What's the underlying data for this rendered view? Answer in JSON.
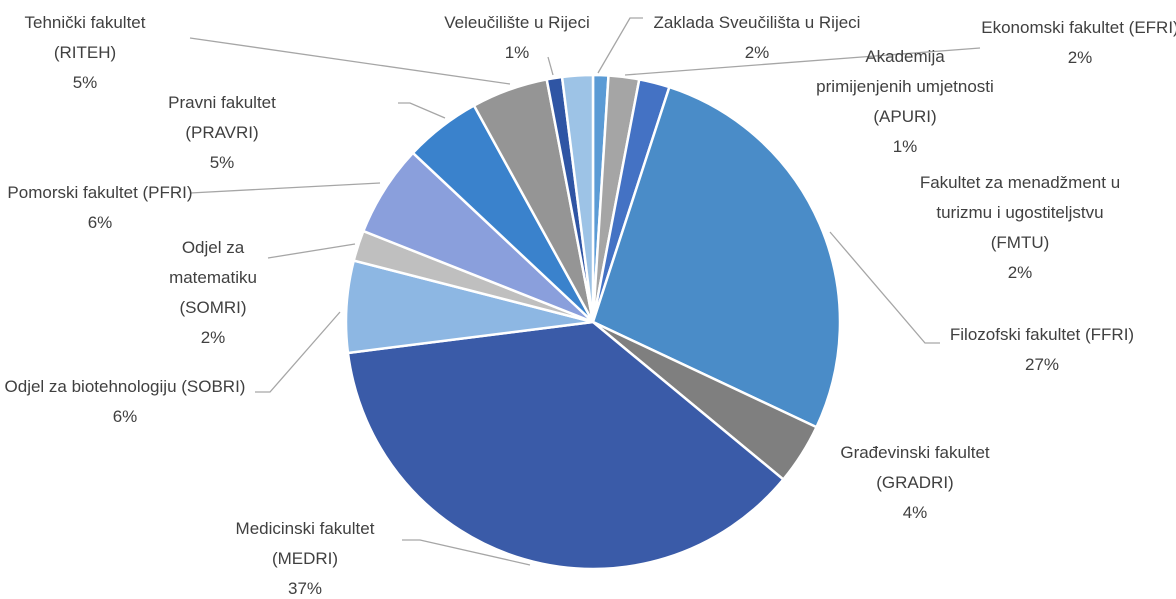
{
  "chart_data": {
    "type": "pie",
    "categories": [
      "Akademija primijenjenih umjetnosti (APURI)",
      "Ekonomski fakultet (EFRI)",
      "Fakultet za menadžment u turizmu i ugostiteljstvu (FMTU)",
      "Filozofski fakultet (FFRI)",
      "Građevinski fakultet (GRADRI)",
      "Medicinski fakultet (MEDRI)",
      "Odjel za biotehnologiju (SOBRI)",
      "Odjel za matematiku (SOMRI)",
      "Pomorski fakultet (PFRI)",
      "Pravni fakultet (PRAVRI)",
      "Tehnički fakultet (RITEH)",
      "Veleučilište u Rijeci",
      "Zaklada Sveučilišta u Rijeci"
    ],
    "values": [
      1,
      2,
      2,
      27,
      4,
      37,
      6,
      2,
      6,
      5,
      5,
      1,
      2
    ],
    "value_labels": [
      "1%",
      "2%",
      "2%",
      "27%",
      "4%",
      "37%",
      "6%",
      "2%",
      "6%",
      "5%",
      "5%",
      "1%",
      "2%"
    ],
    "colors": [
      "#5b9bd5",
      "#a5a5a5",
      "#4472c4",
      "#4a8cc8",
      "#7f7f7f",
      "#3a5ba8",
      "#8db7e3",
      "#bfbfbf",
      "#8a9fdc",
      "#3a82cc",
      "#959595",
      "#2f55a4",
      "#9dc3e6"
    ]
  }
}
